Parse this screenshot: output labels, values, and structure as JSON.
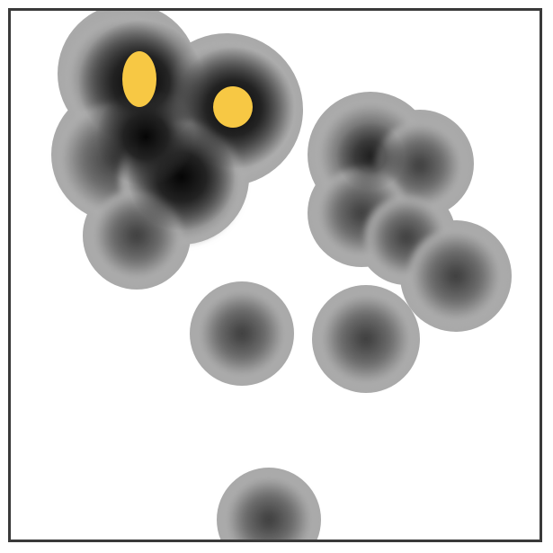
{
  "figure": {
    "kind": "density-heatmap",
    "background_color": "#ffffff",
    "border_color": "#3a3a3a",
    "halo_color": "#a9a9a9",
    "core_color": "#0a0a0a",
    "hotspot_color": "#f7c844",
    "blob_count": 13,
    "hotspot_count": 2,
    "text": ""
  }
}
